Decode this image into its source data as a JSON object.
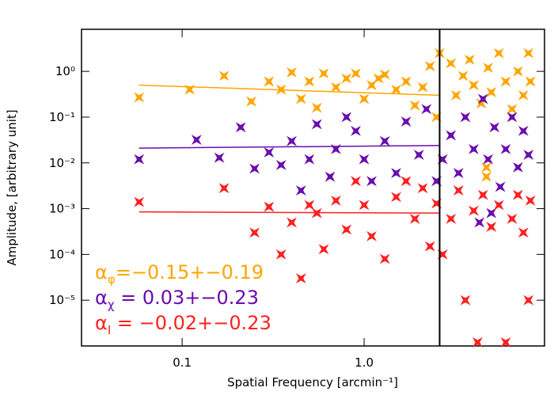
{
  "chart_data": {
    "type": "scatter",
    "xlabel": "Spatial Frequency [arcmin⁻¹]",
    "ylabel": "Amplitude, [arbitrary unit]",
    "xscale": "log",
    "yscale": "log",
    "xlim": [
      0.028,
      9.8
    ],
    "ylim": [
      1e-06,
      8.3
    ],
    "xticks": [
      0.1,
      {
        "value": 1,
        "label": "1.0"
      }
    ],
    "yticks": [
      {
        "value": 1e-05,
        "label": "10⁻⁵"
      },
      {
        "value": 0.0001,
        "label": "10⁻⁴"
      },
      {
        "value": 0.001,
        "label": "10⁻³"
      },
      {
        "value": 0.01,
        "label": "10⁻²"
      },
      {
        "value": 0.1,
        "label": "10⁻¹"
      },
      {
        "value": 1,
        "label": "10⁰"
      }
    ],
    "vline": 2.6,
    "series": [
      {
        "color": "#ffa500",
        "x": [
          0.058,
          0.11,
          0.17,
          0.24,
          0.3,
          0.35,
          0.4,
          0.45,
          0.5,
          0.55,
          0.6,
          0.7,
          0.8,
          0.9,
          1.0,
          1.1,
          1.2,
          1.3,
          1.5,
          1.7,
          1.9,
          2.1,
          2.3,
          2.5,
          2.6,
          3.0,
          3.2,
          3.5,
          3.8,
          4.0,
          4.4,
          4.8,
          5.0,
          5.5,
          6.0,
          6.5,
          7.0,
          7.5,
          8.0,
          8.2,
          4.7,
          4.7
        ],
        "values": [
          0.27,
          0.4,
          0.8,
          0.22,
          0.6,
          0.4,
          0.95,
          0.25,
          0.6,
          0.16,
          0.9,
          0.45,
          0.7,
          0.9,
          0.25,
          0.5,
          0.7,
          0.85,
          0.4,
          0.6,
          0.18,
          0.45,
          1.3,
          0.1,
          2.5,
          1.5,
          0.3,
          0.8,
          1.8,
          0.5,
          0.2,
          1.2,
          0.35,
          2.5,
          0.6,
          0.15,
          1.0,
          0.3,
          2.5,
          0.6,
          0.005,
          0.008
        ],
        "fit": {
          "x": [
            0.058,
            2.6
          ],
          "values": [
            0.5,
            0.3
          ]
        }
      },
      {
        "color": "#6a0dad",
        "x": [
          0.058,
          0.12,
          0.16,
          0.21,
          0.25,
          0.3,
          0.35,
          0.4,
          0.45,
          0.5,
          0.55,
          0.65,
          0.7,
          0.8,
          0.9,
          1.0,
          1.1,
          1.3,
          1.5,
          1.7,
          2.0,
          2.2,
          2.5,
          2.7,
          3.0,
          3.3,
          3.6,
          4.0,
          4.5,
          4.8,
          5.2,
          5.6,
          6.0,
          6.5,
          7.0,
          7.5,
          8.0,
          4.3,
          5.0
        ],
        "values": [
          0.012,
          0.032,
          0.013,
          0.06,
          0.0075,
          0.017,
          0.009,
          0.03,
          0.0025,
          0.012,
          0.07,
          0.005,
          0.02,
          0.1,
          0.05,
          0.012,
          0.004,
          0.03,
          0.006,
          0.08,
          0.015,
          0.15,
          0.004,
          0.012,
          0.04,
          0.006,
          0.1,
          0.02,
          0.25,
          0.012,
          0.06,
          0.003,
          0.02,
          0.1,
          0.008,
          0.05,
          0.015,
          0.0005,
          0.0008
        ],
        "fit": {
          "x": [
            0.058,
            2.6
          ],
          "values": [
            0.021,
            0.024
          ]
        }
      },
      {
        "color": "#ff2020",
        "x": [
          0.058,
          0.17,
          0.25,
          0.3,
          0.35,
          0.4,
          0.45,
          0.5,
          0.55,
          0.6,
          0.7,
          0.8,
          0.9,
          1.0,
          1.1,
          1.3,
          1.5,
          1.7,
          1.9,
          2.1,
          2.3,
          2.5,
          2.7,
          3.0,
          3.3,
          3.6,
          4.0,
          4.2,
          4.5,
          5.0,
          5.5,
          6.0,
          6.5,
          7.0,
          7.5,
          8.0,
          8.2
        ],
        "values": [
          0.0014,
          0.0028,
          0.0003,
          0.0011,
          0.0001,
          0.0005,
          3e-05,
          0.0012,
          0.0008,
          0.00013,
          0.0015,
          0.00035,
          0.004,
          0.0012,
          0.00025,
          8e-05,
          0.0018,
          0.004,
          0.0006,
          0.0028,
          0.00015,
          0.0013,
          0.0001,
          0.0006,
          0.0025,
          1e-05,
          0.0009,
          1.2e-06,
          0.002,
          0.0004,
          0.0012,
          1.2e-06,
          0.0006,
          0.002,
          0.0003,
          1e-05,
          0.0015
        ],
        "fit": {
          "x": [
            0.058,
            2.6
          ],
          "values": [
            0.00085,
            0.0008
          ]
        }
      }
    ],
    "annotations": [
      {
        "symbol": "α",
        "subscript": "φ",
        "text": "=−0.15+−0.19",
        "color": "#ffa500"
      },
      {
        "symbol": "α",
        "subscript": "χ",
        "text": " = 0.03+−0.23",
        "color": "#6a0dad"
      },
      {
        "symbol": "α",
        "subscript": "I",
        "text": " = −0.02+−0.23",
        "color": "#ff2020"
      }
    ]
  }
}
